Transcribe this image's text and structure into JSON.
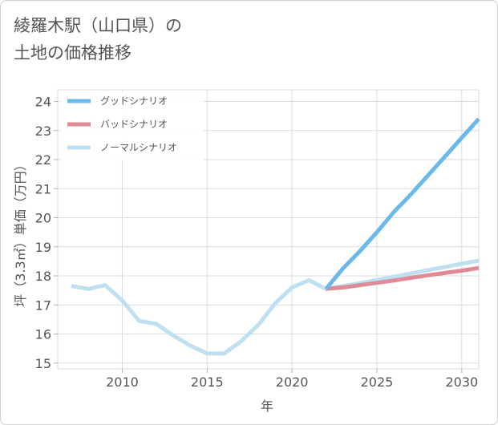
{
  "title": {
    "line1": "綾羅木駅（山口県）の",
    "line2": "土地の価格推移"
  },
  "chart_data": {
    "type": "line",
    "xlabel": "年",
    "ylabel": "坪（3.3㎡）単価（万円）",
    "xlim": [
      2006.2,
      2031
    ],
    "ylim": [
      14.8,
      24.4
    ],
    "x_ticks": [
      2010,
      2015,
      2020,
      2025,
      2030
    ],
    "y_ticks": [
      15,
      16,
      17,
      18,
      19,
      20,
      21,
      22,
      23,
      24
    ],
    "grid": true,
    "legend_position": "top-left",
    "series": [
      {
        "name": "グッドシナリオ",
        "color": "#6bb8ea",
        "points": [
          [
            2022,
            17.55
          ],
          [
            2023,
            18.25
          ],
          [
            2024,
            18.85
          ],
          [
            2025,
            19.5
          ],
          [
            2026,
            20.2
          ],
          [
            2027,
            20.8
          ],
          [
            2028,
            21.45
          ],
          [
            2029,
            22.1
          ],
          [
            2030,
            22.75
          ],
          [
            2031,
            23.4
          ]
        ]
      },
      {
        "name": "バッドシナリオ",
        "color": "#e08a96",
        "points": [
          [
            2022,
            17.55
          ],
          [
            2023,
            17.6
          ],
          [
            2024,
            17.68
          ],
          [
            2025,
            17.76
          ],
          [
            2026,
            17.84
          ],
          [
            2027,
            17.93
          ],
          [
            2028,
            18.02
          ],
          [
            2029,
            18.1
          ],
          [
            2030,
            18.18
          ],
          [
            2031,
            18.27
          ]
        ]
      },
      {
        "name": "ノーマルシナリオ",
        "color": "#bfe0f0",
        "points": [
          [
            2007,
            17.65
          ],
          [
            2008,
            17.55
          ],
          [
            2009,
            17.68
          ],
          [
            2010,
            17.15
          ],
          [
            2011,
            16.45
          ],
          [
            2012,
            16.35
          ],
          [
            2013,
            15.95
          ],
          [
            2014,
            15.6
          ],
          [
            2015,
            15.33
          ],
          [
            2016,
            15.33
          ],
          [
            2017,
            15.75
          ],
          [
            2018,
            16.3
          ],
          [
            2019,
            17.05
          ],
          [
            2020,
            17.6
          ],
          [
            2021,
            17.85
          ],
          [
            2022,
            17.55
          ],
          [
            2023,
            17.65
          ],
          [
            2024,
            17.75
          ],
          [
            2025,
            17.85
          ],
          [
            2026,
            17.97
          ],
          [
            2027,
            18.08
          ],
          [
            2028,
            18.2
          ],
          [
            2029,
            18.3
          ],
          [
            2030,
            18.42
          ],
          [
            2031,
            18.52
          ]
        ]
      }
    ]
  }
}
